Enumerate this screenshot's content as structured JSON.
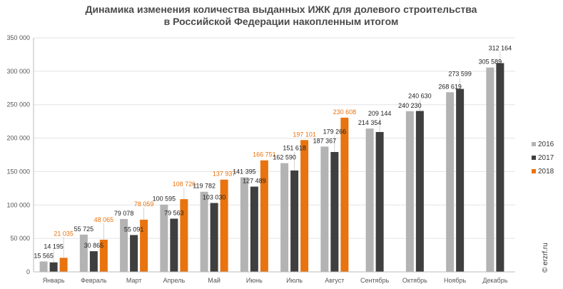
{
  "chart_data": {
    "type": "bar",
    "title_lines": [
      "Динамика изменения количества выданных ИЖК для долевого строительства",
      "в Российской Федерации накопленным итогом"
    ],
    "xlabel": "",
    "ylabel": "",
    "ylim": [
      0,
      350000
    ],
    "y_ticks": [
      0,
      50000,
      100000,
      150000,
      200000,
      250000,
      300000,
      350000
    ],
    "y_tick_labels": [
      "0",
      "50 000",
      "100 000",
      "150 000",
      "200 000",
      "250 000",
      "300 000",
      "350 000"
    ],
    "grid": true,
    "legend_position": "right",
    "categories": [
      "Январь",
      "Февраль",
      "Март",
      "Апрель",
      "Май",
      "Июнь",
      "Июль",
      "Август",
      "Сентябрь",
      "Октябрь",
      "Ноябрь",
      "Декабрь"
    ],
    "series": [
      {
        "name": "2016",
        "color": "#b3b3b3",
        "label_color": "#222222",
        "values": [
          15565,
          55725,
          79078,
          100595,
          119782,
          141395,
          162590,
          187367,
          214354,
          240230,
          268619,
          305589
        ],
        "labels": [
          "15 565",
          "55 725",
          "79 078",
          "100 595",
          "119 782",
          "141 395",
          "162 590",
          "187 367",
          "214 354",
          "240 230",
          "268 619",
          "305 589"
        ]
      },
      {
        "name": "2017",
        "color": "#3f3f3f",
        "label_color": "#222222",
        "values": [
          14195,
          30865,
          55091,
          79563,
          103030,
          127489,
          151618,
          179266,
          209144,
          240630,
          273599,
          312164
        ],
        "labels": [
          "14 195",
          "30 865",
          "55 091",
          "79 563",
          "103 030",
          "127 489",
          "151 618",
          "179 266",
          "209 144",
          "240 630",
          "273 599",
          "312 164"
        ]
      },
      {
        "name": "2018",
        "color": "#e8730f",
        "label_color": "#e8730f",
        "values": [
          21035,
          48065,
          78059,
          108726,
          137937,
          166751,
          197101,
          230608,
          null,
          null,
          null,
          null
        ],
        "labels": [
          "21 035",
          "48 065",
          "78 059",
          "108 726",
          "137 937",
          "166 751",
          "197 101",
          "230 608",
          null,
          null,
          null,
          null
        ]
      }
    ]
  },
  "watermark": "© erzrf.ru"
}
